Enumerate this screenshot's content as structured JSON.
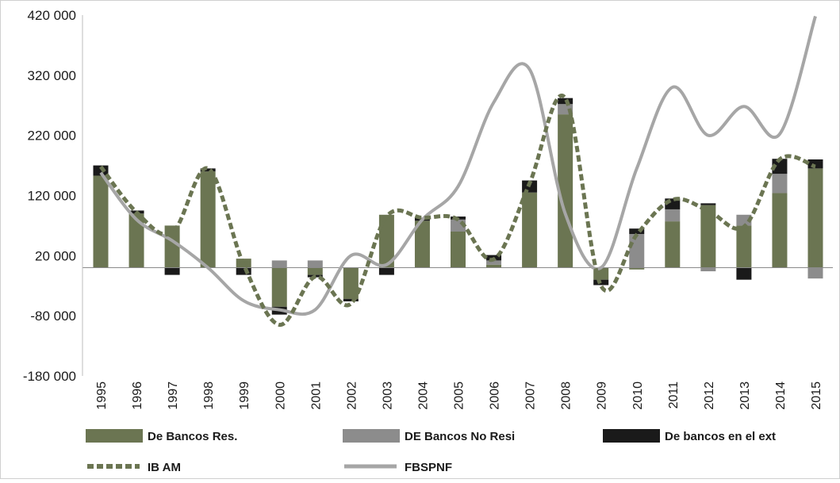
{
  "chart_data": {
    "type": "bar",
    "title": "",
    "xlabel": "",
    "ylabel": "",
    "ylim": [
      -180000,
      420000
    ],
    "yticks": [
      420000,
      320000,
      220000,
      120000,
      20000,
      -80000,
      -180000
    ],
    "ytick_labels": [
      "420 000",
      "320 000",
      "220 000",
      "120 000",
      "20 000",
      "-80 000",
      "-180 000"
    ],
    "categories": [
      "1995",
      "1996",
      "1997",
      "1998",
      "1999",
      "2000",
      "2001",
      "2002",
      "2003",
      "2004",
      "2005",
      "2006",
      "2007",
      "2008",
      "2009",
      "2010",
      "2011",
      "2012",
      "2013",
      "2014",
      "2015"
    ],
    "series": [
      {
        "name": "De Bancos Res.",
        "kind": "bar",
        "color": "#6b7552",
        "values": [
          153000,
          90000,
          70000,
          160000,
          15000,
          -65000,
          -12000,
          -52000,
          88000,
          78000,
          60000,
          5000,
          125000,
          255000,
          -20000,
          -3000,
          77000,
          104000,
          70000,
          124000,
          165000
        ]
      },
      {
        "name": "DE Bancos No Resi",
        "kind": "bar",
        "color": "#8c8c8c",
        "values": [
          0,
          0,
          0,
          0,
          0,
          12000,
          12000,
          0,
          0,
          0,
          20000,
          7000,
          0,
          17000,
          0,
          56000,
          20000,
          -6000,
          18000,
          32000,
          -18000
        ]
      },
      {
        "name": "De bancos en el ext",
        "kind": "bar",
        "color": "#1a1a1a",
        "values": [
          17000,
          5000,
          -12000,
          5000,
          -12000,
          -13000,
          -4000,
          -4000,
          -12000,
          5000,
          5000,
          9000,
          20000,
          10000,
          -9000,
          9000,
          18000,
          3000,
          -20000,
          25000,
          15000
        ]
      },
      {
        "name": "IB AM",
        "kind": "line",
        "style": "dashed",
        "color": "#6b7552",
        "values": [
          168000,
          92000,
          58000,
          165000,
          5000,
          -95000,
          -15000,
          -60000,
          85000,
          83000,
          80000,
          14000,
          140000,
          282000,
          -30000,
          55000,
          113000,
          95000,
          68000,
          180000,
          168000
        ]
      },
      {
        "name": "FBSPNF",
        "kind": "line",
        "style": "solid",
        "color": "#a6a6a6",
        "values": [
          158000,
          80000,
          45000,
          0,
          -55000,
          -70000,
          -70000,
          20000,
          5000,
          80000,
          135000,
          275000,
          330000,
          90000,
          0,
          165000,
          300000,
          220000,
          268000,
          222000,
          418000
        ]
      }
    ],
    "legend": "bottom"
  }
}
